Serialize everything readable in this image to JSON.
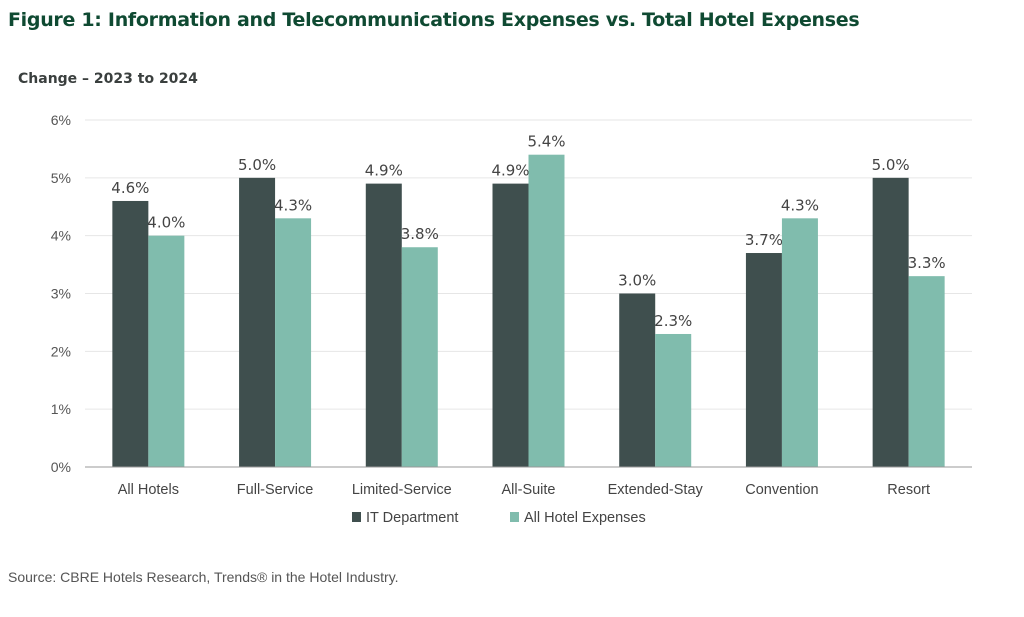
{
  "chart_data": {
    "type": "bar",
    "title": "Figure 1: Information and Telecommunications Expenses vs. Total Hotel Expenses",
    "subtitle": "Change – 2023 to 2024",
    "source": "Source: CBRE Hotels Research, Trends® in the Hotel Industry.",
    "categories": [
      "All Hotels",
      "Full-Service",
      "Limited-Service",
      "All-Suite",
      "Extended-Stay",
      "Convention",
      "Resort"
    ],
    "series": [
      {
        "name": "IT Department",
        "color": "#3f4f4e",
        "values": [
          4.6,
          5.0,
          4.9,
          4.9,
          3.0,
          3.7,
          5.0
        ]
      },
      {
        "name": "All Hotel Expenses",
        "color": "#80bcad",
        "values": [
          4.0,
          4.3,
          3.8,
          5.4,
          2.3,
          4.3,
          3.3
        ]
      }
    ],
    "yticks": [
      "0%",
      "1%",
      "2%",
      "3%",
      "4%",
      "5%",
      "6%"
    ],
    "ylim": [
      0,
      6
    ],
    "value_suffix": "%",
    "grid": true,
    "legend": "bottom"
  }
}
